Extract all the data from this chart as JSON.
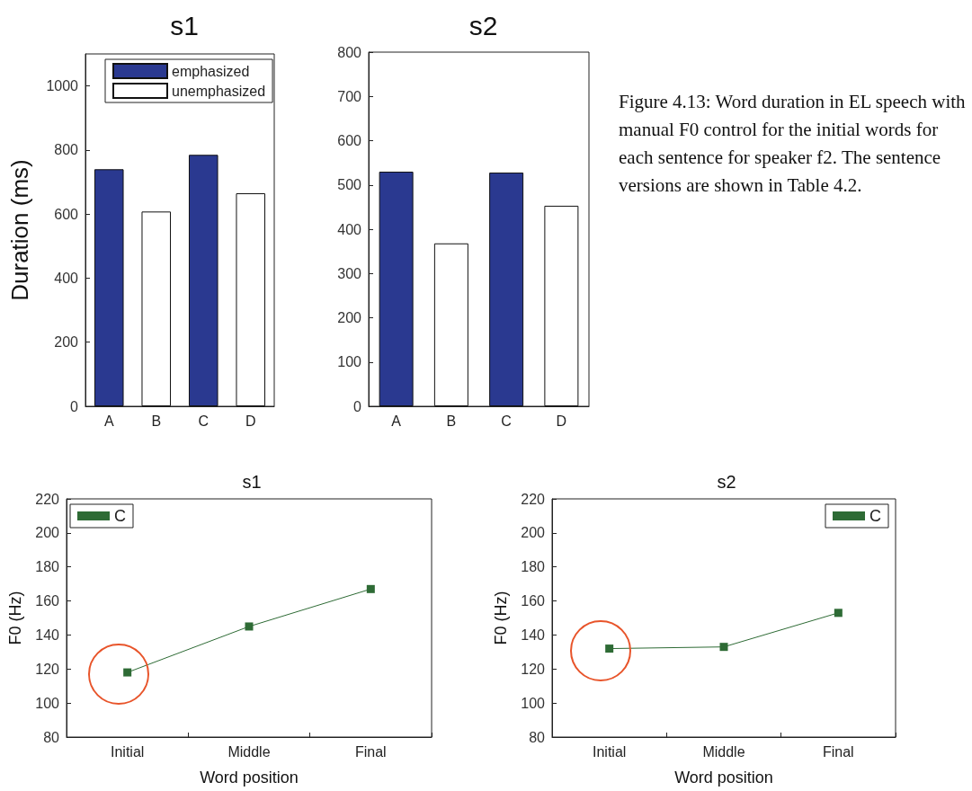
{
  "chart_data": [
    {
      "type": "bar",
      "title": "s1",
      "ylabel": "Duration (ms)",
      "categories": [
        "A",
        "B",
        "C",
        "D"
      ],
      "series": [
        {
          "name": "emphasized",
          "color": "#2a3990",
          "values": [
            740,
            null,
            785,
            null
          ]
        },
        {
          "name": "unemphasized",
          "color": "#ffffff",
          "values": [
            null,
            608,
            null,
            665
          ]
        }
      ],
      "ylim": [
        0,
        1100
      ],
      "yticks": [
        0,
        200,
        400,
        600,
        800,
        1000
      ],
      "grid": false,
      "legend": "top"
    },
    {
      "type": "bar",
      "title": "s2",
      "categories": [
        "A",
        "B",
        "C",
        "D"
      ],
      "series": [
        {
          "color": "#2a3990",
          "values": [
            530,
            null,
            528,
            null
          ]
        },
        {
          "color": "#ffffff",
          "values": [
            null,
            368,
            null,
            453
          ]
        }
      ],
      "ylim": [
        0,
        800
      ],
      "yticks": [
        0,
        100,
        200,
        300,
        400,
        500,
        600,
        700,
        800
      ],
      "grid": false,
      "legend": false,
      "annotations": [
        "Figure 4.13: Word duration in EL speech with manual F0 control for the initial words for each sentence for speaker f2. The sentence versions are shown in Table 4.2."
      ]
    },
    {
      "type": "line",
      "title": "s1",
      "xlabel": "Word position",
      "ylabel": "F0 (Hz)",
      "categories": [
        "Initial",
        "Middle",
        "Final"
      ],
      "series": [
        {
          "name": "C",
          "color": "#2e6b35",
          "values": [
            118,
            145,
            167
          ]
        }
      ],
      "ylim": [
        80,
        220
      ],
      "yticks": [
        80,
        100,
        120,
        140,
        160,
        180,
        200,
        220
      ],
      "grid": false,
      "legend": "top left",
      "marker": "square",
      "line_style": "solid"
    },
    {
      "type": "line",
      "title": "s2",
      "xlabel": "Word position",
      "ylabel": "F0 (Hz)",
      "categories": [
        "Initial",
        "Middle",
        "Final"
      ],
      "series": [
        {
          "name": "C",
          "color": "#2e6b35",
          "values": [
            132,
            133,
            153
          ]
        }
      ],
      "ylim": [
        80,
        220
      ],
      "yticks": [
        80,
        100,
        120,
        140,
        160,
        180,
        200,
        220
      ],
      "grid": false,
      "legend": "top right",
      "marker": "square",
      "line_style": "solid"
    }
  ]
}
